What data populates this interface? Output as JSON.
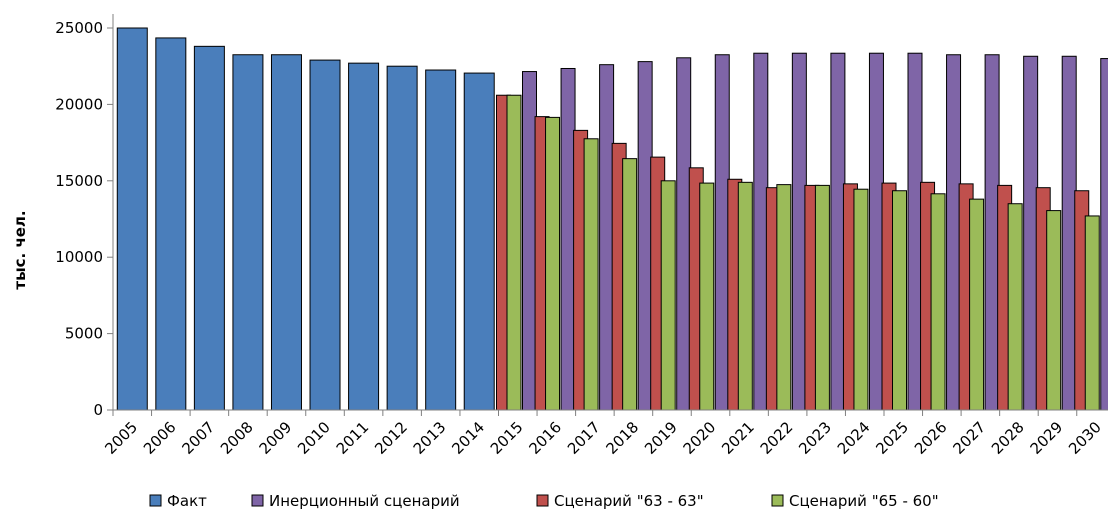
{
  "chart_data": {
    "type": "bar",
    "ylabel": "тыс. чел.",
    "ylim": [
      0,
      25000
    ],
    "yticks": [
      0,
      5000,
      10000,
      15000,
      20000,
      25000
    ],
    "categories": [
      "2005",
      "2006",
      "2007",
      "2008",
      "2009",
      "2010",
      "2011",
      "2012",
      "2013",
      "2014",
      "2015",
      "2016",
      "2017",
      "2018",
      "2019",
      "2020",
      "2021",
      "2022",
      "2023",
      "2024",
      "2025",
      "2026",
      "2027",
      "2028",
      "2029",
      "2030"
    ],
    "legend_position": "bottom",
    "series": [
      {
        "name": "Факт",
        "color": "#4a7ebb",
        "values": [
          25000,
          24350,
          23800,
          23250,
          23250,
          22900,
          22700,
          22500,
          22250,
          22050,
          null,
          null,
          null,
          null,
          null,
          null,
          null,
          null,
          null,
          null,
          null,
          null,
          null,
          null,
          null,
          null
        ]
      },
      {
        "name": "Инерционный сценарий",
        "color": "#7f65a7",
        "values": [
          null,
          null,
          null,
          null,
          null,
          null,
          null,
          null,
          null,
          null,
          22150,
          22350,
          22600,
          22800,
          23050,
          23250,
          23350,
          23350,
          23350,
          23350,
          23350,
          23250,
          23250,
          23150,
          23150,
          23000
        ]
      },
      {
        "name": "Сценарий \"63 - 63\"",
        "color": "#c0504d",
        "values": [
          null,
          null,
          null,
          null,
          null,
          null,
          null,
          null,
          null,
          null,
          20600,
          19200,
          18300,
          17450,
          16550,
          15850,
          15100,
          14550,
          14700,
          14800,
          14850,
          14900,
          14800,
          14700,
          14550,
          14350
        ]
      },
      {
        "name": "Сценарий \"65 - 60\"",
        "color": "#9bbb59",
        "values": [
          null,
          null,
          null,
          null,
          null,
          null,
          null,
          null,
          null,
          null,
          20600,
          19150,
          17750,
          16450,
          15000,
          14850,
          14900,
          14750,
          14700,
          14450,
          14350,
          14150,
          13800,
          13500,
          13050,
          12700
        ]
      }
    ]
  }
}
